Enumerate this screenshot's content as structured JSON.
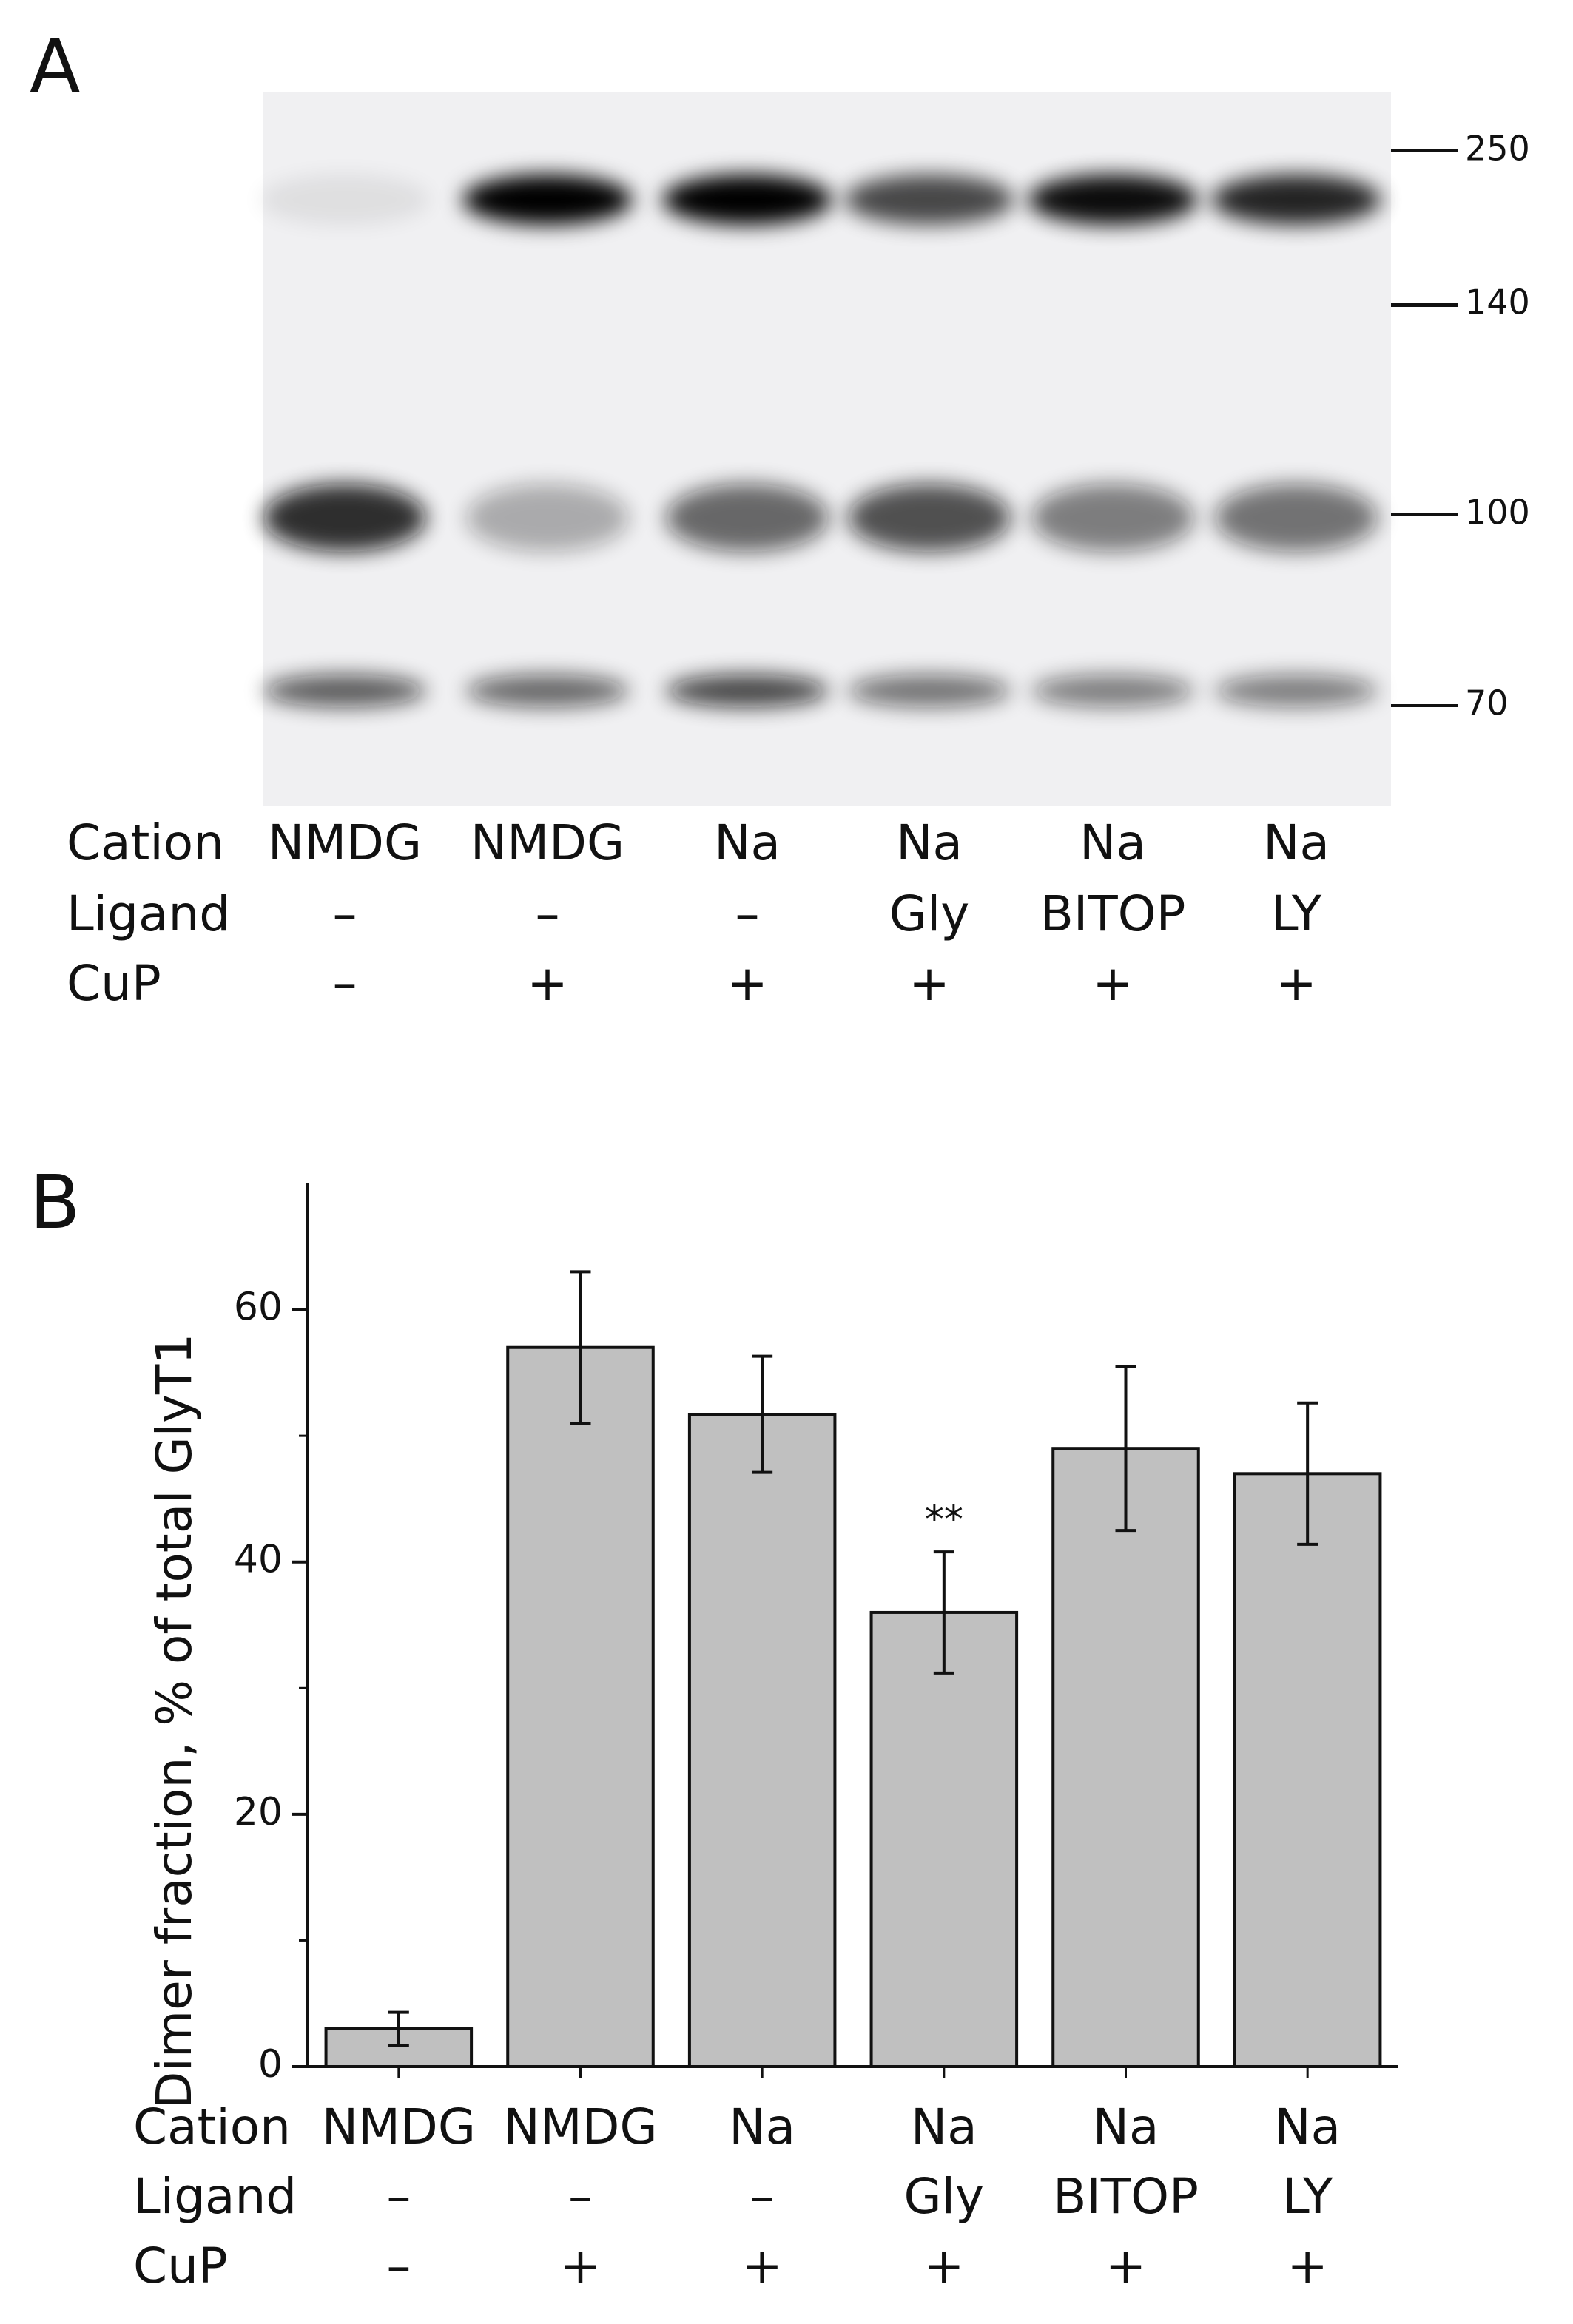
{
  "panel_a": {
    "label": "A",
    "markers": [
      250,
      140,
      100,
      70
    ],
    "rows": [
      {
        "name": "Cation",
        "labels": [
          "NMDG",
          "NMDG",
          "Na",
          "Na",
          "Na",
          "Na"
        ]
      },
      {
        "name": "Ligand",
        "labels": [
          "–",
          "–",
          "–",
          "Gly",
          "BITOP",
          "LY"
        ]
      },
      {
        "name": "CuP",
        "labels": [
          "–",
          "+",
          "+",
          "+",
          "+",
          "+"
        ]
      }
    ]
  },
  "chart_data": {
    "type": "bar",
    "label": "B",
    "y_label": "Dimer fraction, % of total GlyT1",
    "categories_name": "Cation",
    "categories": [
      "NMDG",
      "NMDG",
      "Na",
      "Na",
      "Na",
      "Na"
    ],
    "category_rows": [
      {
        "name": "Ligand",
        "labels": [
          "–",
          "–",
          "–",
          "Gly",
          "BITOP",
          "LY"
        ]
      },
      {
        "name": "CuP",
        "labels": [
          "–",
          "+",
          "+",
          "+",
          "+",
          "+"
        ]
      }
    ],
    "values": [
      3,
      57,
      51.7,
      36,
      49,
      47
    ],
    "errors": [
      1.3,
      6,
      4.6,
      4.8,
      6.5,
      5.6
    ],
    "annotations": [
      {
        "index": 3,
        "text": "**"
      }
    ],
    "color": "#c0c0c0",
    "ylim": [
      0,
      70
    ],
    "yticks": [
      0,
      20,
      40,
      60
    ],
    "minor_yticks": [
      10,
      30,
      50
    ]
  }
}
